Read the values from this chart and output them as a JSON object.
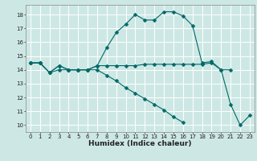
{
  "xlabel": "Humidex (Indice chaleur)",
  "background_color": "#cde8e4",
  "grid_color": "#ffffff",
  "line_color": "#006868",
  "series": [
    {
      "x": [
        0,
        1,
        2,
        3,
        4,
        5,
        6,
        7,
        8,
        9,
        10,
        11,
        12,
        13,
        14,
        15,
        16,
        17,
        18,
        19,
        20,
        21,
        22,
        23
      ],
      "y": [
        14.5,
        14.5,
        13.8,
        14.3,
        14.0,
        14.0,
        14.0,
        14.3,
        15.6,
        16.7,
        17.3,
        18.0,
        17.6,
        17.6,
        18.2,
        18.2,
        17.9,
        17.2,
        14.5,
        14.6,
        14.0,
        11.5,
        10.0,
        10.7
      ]
    },
    {
      "x": [
        0,
        1,
        2,
        3,
        4,
        5,
        6,
        7,
        8,
        9,
        10,
        11,
        12,
        13,
        14,
        15,
        16,
        17,
        18,
        19,
        20,
        21
      ],
      "y": [
        14.5,
        14.5,
        13.8,
        14.3,
        14.0,
        14.0,
        14.0,
        14.3,
        14.3,
        14.3,
        14.3,
        14.3,
        14.4,
        14.4,
        14.4,
        14.4,
        14.4,
        14.4,
        14.4,
        14.5,
        14.0,
        14.0
      ]
    },
    {
      "x": [
        0,
        1,
        2,
        3,
        4,
        5,
        6,
        7,
        8,
        9,
        10,
        11,
        12,
        13,
        14,
        15,
        16
      ],
      "y": [
        14.5,
        14.5,
        13.8,
        14.0,
        14.0,
        14.0,
        14.0,
        14.0,
        13.6,
        13.2,
        12.7,
        12.3,
        11.9,
        11.5,
        11.1,
        10.6,
        10.2
      ]
    }
  ],
  "xlim": [
    -0.5,
    23.5
  ],
  "ylim": [
    9.5,
    18.7
  ],
  "yticks": [
    10,
    11,
    12,
    13,
    14,
    15,
    16,
    17,
    18
  ],
  "xticks": [
    0,
    1,
    2,
    3,
    4,
    5,
    6,
    7,
    8,
    9,
    10,
    11,
    12,
    13,
    14,
    15,
    16,
    17,
    18,
    19,
    20,
    21,
    22,
    23
  ],
  "tick_fontsize": 5.0,
  "xlabel_fontsize": 6.5,
  "markersize": 2.5
}
